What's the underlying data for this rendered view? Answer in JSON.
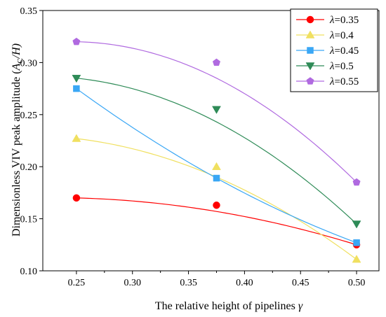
{
  "chart_data": {
    "type": "scatter",
    "title": "",
    "xlabel_text": "The relative height of pipelines",
    "xlabel_symbol": "γ",
    "ylabel_text": "Dimensionless VIV peak amplitude (",
    "ylabel_symbol": "A",
    "ylabel_sub": "C",
    "ylabel_tail": "/H)",
    "xlim": [
      0.22,
      0.52
    ],
    "ylim": [
      0.1,
      0.35
    ],
    "xticks": [
      "0.25",
      "0.30",
      "0.35",
      "0.40",
      "0.45",
      "0.50"
    ],
    "yticks": [
      "0.10",
      "0.15",
      "0.20",
      "0.25",
      "0.30",
      "0.35"
    ],
    "x": [
      0.25,
      0.375,
      0.5
    ],
    "legend_position": "top-right",
    "grid": false,
    "series": [
      {
        "name": "λ=0.35",
        "symbol": "λ",
        "value_label": "=0.35",
        "values": [
          0.17,
          0.163,
          0.125
        ],
        "fit": [
          0.17,
          0.157,
          0.125
        ],
        "color": "#ff0000",
        "marker": "circle"
      },
      {
        "name": "λ=0.4",
        "symbol": "λ",
        "value_label": "=0.4",
        "values": [
          0.227,
          0.2,
          0.111
        ],
        "fit": [
          0.227,
          0.19,
          0.111
        ],
        "color": "#f0e060",
        "marker": "triangle-up"
      },
      {
        "name": "λ=0.45",
        "symbol": "λ",
        "value_label": "=0.45",
        "values": [
          0.275,
          0.189,
          0.127
        ],
        "fit": [
          0.275,
          0.189,
          0.127
        ],
        "color": "#3aa7f5",
        "marker": "square"
      },
      {
        "name": "λ=0.5",
        "symbol": "λ",
        "value_label": "=0.5",
        "values": [
          0.285,
          0.255,
          0.145
        ],
        "fit": [
          0.285,
          0.243,
          0.145
        ],
        "color": "#2e8b57",
        "marker": "triangle-down"
      },
      {
        "name": "λ=0.55",
        "symbol": "λ",
        "value_label": "=0.55",
        "values": [
          0.32,
          0.3,
          0.185
        ],
        "fit": [
          0.32,
          0.285,
          0.185
        ],
        "color": "#b06ae0",
        "marker": "pentagon"
      }
    ]
  }
}
